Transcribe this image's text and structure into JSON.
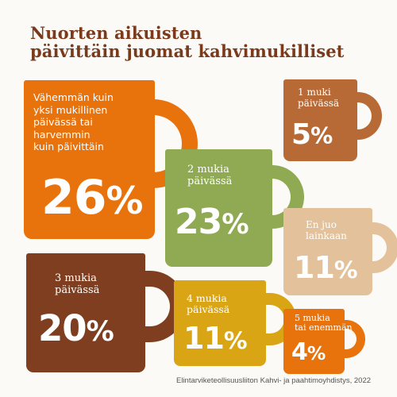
{
  "title": {
    "line1": "Nuorten aikuisten",
    "line2": "päivittäin juomat kahvimukilliset"
  },
  "footer": "Elintarviketeollisuusliiton Kahvi- ja paahtimoyhdistys, 2022",
  "chart_data": {
    "type": "pictogram",
    "title": "Nuorten aikuisten päivittäin juomat kahvimukilliset",
    "categories": [
      {
        "label_lines": [
          "Vähemmän kuin",
          "yksi mukillinen",
          "päivässä tai",
          "harvemmin",
          "kuin päivittäin"
        ],
        "value": 26,
        "display": "26",
        "unit": "%",
        "color": "#e8720c"
      },
      {
        "label_lines": [
          "2 mukia",
          "päivässä"
        ],
        "value": 23,
        "display": "23",
        "unit": "%",
        "color": "#8faa53"
      },
      {
        "label_lines": [
          "3 mukia",
          "päivässä"
        ],
        "value": 20,
        "display": "20",
        "unit": "%",
        "color": "#7e3e1f"
      },
      {
        "label_lines": [
          "En juo",
          "lainkaan"
        ],
        "value": 11,
        "display": "11",
        "unit": "%",
        "color": "#e3c19a"
      },
      {
        "label_lines": [
          "4 mukia",
          "päivässä"
        ],
        "value": 11,
        "display": "11",
        "unit": "%",
        "color": "#d9a514"
      },
      {
        "label_lines": [
          "1 muki",
          "päivässä"
        ],
        "value": 5,
        "display": "5",
        "unit": "%",
        "color": "#b86a36"
      },
      {
        "label_lines": [
          "5 mukia",
          "tai enemmän"
        ],
        "value": 4,
        "display": "4",
        "unit": "%",
        "color": "#e8720c"
      }
    ]
  }
}
